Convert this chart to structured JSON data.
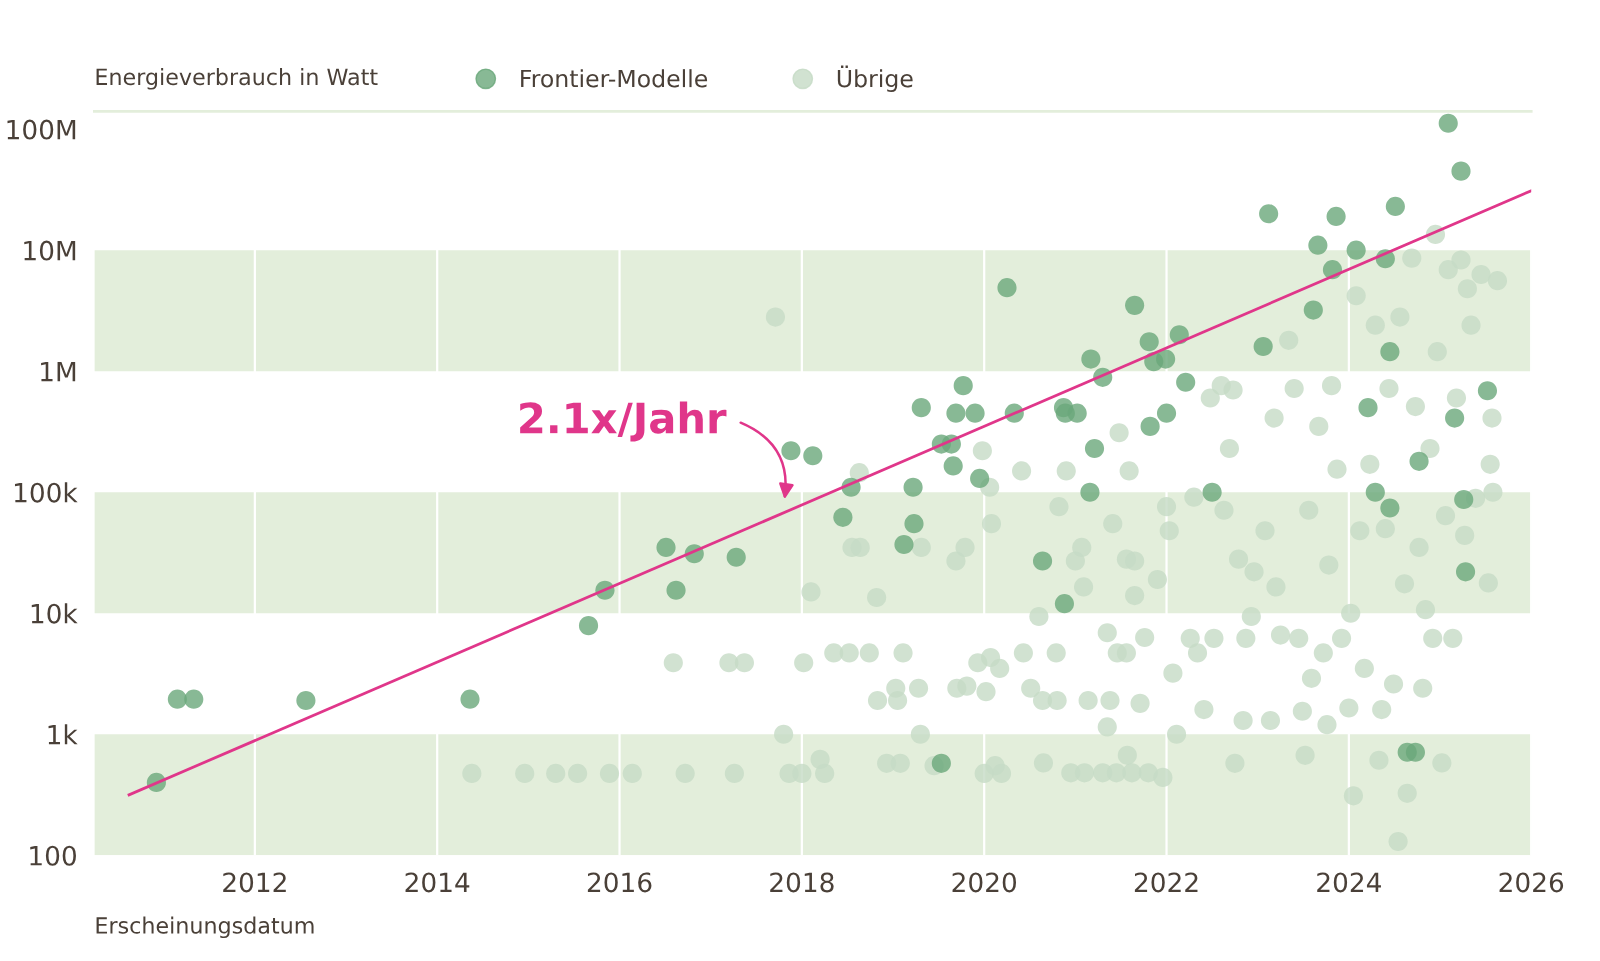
{
  "chart_data": {
    "type": "scatter",
    "xlabel": "Erscheinungsdatum",
    "ylabel": "Energieverbrauch in Watt",
    "log": "y",
    "grid": "x",
    "legend": "top",
    "marker": "circle",
    "xlim": [
      2010.24,
      2026.0
    ],
    "xticks": [
      2012,
      2014,
      2016,
      2018,
      2020,
      2022,
      2024,
      2026
    ],
    "ylim": [
      100,
      140000000
    ],
    "yticks": [
      {
        "value": 100,
        "label": "100"
      },
      {
        "value": 1000,
        "label": "1k"
      },
      {
        "value": 10000,
        "label": "10k"
      },
      {
        "value": 100000,
        "label": "100k"
      },
      {
        "value": 1000000,
        "label": "1M"
      },
      {
        "value": 10000000,
        "label": "10M"
      },
      {
        "value": 100000000,
        "label": "100M"
      }
    ],
    "bands": [
      {
        "axis": "y",
        "from": 100,
        "to": 1000,
        "color": "#e3eedb"
      },
      {
        "axis": "y",
        "from": 10000,
        "to": 100000,
        "color": "#e3eedb"
      },
      {
        "axis": "y",
        "from": 1000000,
        "to": 10000000,
        "color": "#e3eedb"
      }
    ],
    "annotations": [
      "2.1x/Jahr"
    ],
    "series": [
      {
        "name": "Übrige",
        "color": "#c6dbc5",
        "x": [
          2017.71,
          2016.59,
          2017.2,
          2017.37,
          2018.02,
          2017.8,
          2014.38,
          2014.96,
          2015.3,
          2015.54,
          2015.89,
          2016.14,
          2016.72,
          2017.26,
          2017.86,
          2018.0,
          2018.2,
          2018.25,
          2018.35,
          2018.52,
          2018.74,
          2019.11,
          2018.1,
          2018.55,
          2018.64,
          2018.63,
          2018.82,
          2018.83,
          2019.05,
          2019.03,
          2019.28,
          2018.93,
          2019.08,
          2019.3,
          2019.45,
          2019.31,
          2019.69,
          2019.79,
          2019.7,
          2019.81,
          2019.93,
          2020.0,
          2020.19,
          2020.12,
          2019.98,
          2020.06,
          2020.08,
          2020.02,
          2020.07,
          2020.17,
          2020.41,
          2020.43,
          2020.6,
          2020.51,
          2020.64,
          2020.8,
          2020.65,
          2020.79,
          2020.82,
          2020.9,
          2021.0,
          2021.07,
          2021.09,
          2020.95,
          2021.1,
          2021.3,
          2021.45,
          2021.62,
          2021.8,
          2021.14,
          2021.38,
          2021.35,
          2021.46,
          2021.56,
          2021.35,
          2021.41,
          2021.48,
          2021.56,
          2021.65,
          2021.59,
          2021.71,
          2021.57,
          2021.65,
          2021.76,
          2021.9,
          2021.96,
          2022.0,
          2022.03,
          2022.07,
          2022.11,
          2022.26,
          2022.3,
          2022.34,
          2022.41,
          2022.48,
          2022.6,
          2022.52,
          2022.63,
          2022.69,
          2022.73,
          2022.79,
          2022.84,
          2022.87,
          2022.93,
          2022.96,
          2022.75,
          2023.08,
          2023.14,
          2023.18,
          2023.2,
          2023.25,
          2023.34,
          2023.4,
          2023.45,
          2023.49,
          2023.52,
          2023.56,
          2023.59,
          2023.67,
          2023.72,
          2023.76,
          2023.78,
          2023.81,
          2023.87,
          2023.92,
          2024.0,
          2024.02,
          2024.05,
          2024.08,
          2024.12,
          2024.17,
          2024.23,
          2024.29,
          2024.33,
          2024.36,
          2024.4,
          2024.44,
          2024.49,
          2024.54,
          2024.56,
          2024.61,
          2024.64,
          2024.69,
          2024.73,
          2024.77,
          2024.81,
          2024.84,
          2024.89,
          2024.92,
          2024.95,
          2024.97,
          2025.02,
          2025.06,
          2025.09,
          2025.14,
          2025.18,
          2025.23,
          2025.27,
          2025.3,
          2025.34,
          2025.39,
          2025.45,
          2025.53,
          2025.57,
          2025.63,
          2025.55,
          2025.58
        ],
        "values": [
          2800000,
          3900,
          3900,
          3900,
          3900,
          1000,
          475,
          475,
          475,
          475,
          475,
          475,
          475,
          475,
          475,
          475,
          620,
          475,
          4700,
          4700,
          4700,
          4700,
          15000,
          35000,
          35000,
          145000,
          13500,
          1900,
          1900,
          2400,
          2400,
          575,
          575,
          1000,
          550,
          35000,
          27000,
          35000,
          2400,
          2500,
          3900,
          475,
          475,
          550,
          220000,
          110000,
          55000,
          2250,
          4300,
          3500,
          150000,
          4700,
          9400,
          2400,
          1900,
          1900,
          580,
          4700,
          76000,
          150000,
          27000,
          35000,
          16500,
          480,
          480,
          480,
          480,
          480,
          480,
          1900,
          1900,
          1150,
          4700,
          4700,
          6900,
          55000,
          310000,
          28000,
          27000,
          150000,
          1800,
          670,
          14000,
          6300,
          19000,
          440,
          76000,
          48000,
          3200,
          1000,
          6200,
          91000,
          4700,
          1600,
          600000,
          760000,
          6200,
          71000,
          230000,
          700000,
          28000,
          1300,
          6200,
          9400,
          22000,
          575,
          48000,
          1300,
          410000,
          16500,
          6600,
          1800000,
          720000,
          6200,
          1550,
          670,
          71000,
          2900,
          350000,
          4700,
          1200,
          25000,
          760000,
          155000,
          6200,
          1650,
          10000,
          310,
          4200000,
          48000,
          3500,
          170000,
          2400000,
          610,
          1600,
          50000,
          720000,
          2600,
          130,
          2800000,
          17500,
          325,
          8600000,
          510000,
          35000,
          2400,
          10700,
          230000,
          6200,
          13500000,
          1450000,
          580,
          64000,
          6900000,
          6200,
          600000,
          8300000,
          44000,
          4800000,
          2400000,
          89000,
          6300000,
          17800,
          410000,
          5600000,
          170000,
          100000
        ]
      },
      {
        "name": "Frontier-Modelle",
        "color": "#6aa87b",
        "x": [
          2010.92,
          2011.15,
          2011.33,
          2012.56,
          2014.36,
          2015.66,
          2015.84,
          2016.51,
          2016.62,
          2016.82,
          2017.28,
          2017.88,
          2018.12,
          2018.45,
          2018.54,
          2019.12,
          2019.22,
          2019.23,
          2019.31,
          2019.53,
          2019.64,
          2019.66,
          2019.69,
          2019.77,
          2019.9,
          2019.95,
          2019.53,
          2020.25,
          2020.33,
          2020.87,
          2020.89,
          2021.02,
          2020.64,
          2020.88,
          2021.16,
          2021.17,
          2021.21,
          2021.3,
          2021.65,
          2021.81,
          2021.86,
          2021.99,
          2021.82,
          2022.0,
          2022.14,
          2022.21,
          2022.5,
          2023.06,
          2023.12,
          2023.61,
          2023.66,
          2023.82,
          2023.86,
          2024.08,
          2024.4,
          2024.51,
          2024.21,
          2024.29,
          2024.45,
          2024.77,
          2024.73,
          2024.64,
          2025.09,
          2025.23,
          2025.52,
          2025.26,
          2025.28,
          2025.16,
          2024.45
        ],
        "values": [
          400,
          1950,
          1950,
          1900,
          1950,
          7900,
          15500,
          35000,
          15500,
          31000,
          29000,
          220000,
          200000,
          62000,
          110000,
          37000,
          110000,
          55000,
          500000,
          250000,
          250000,
          165000,
          450000,
          760000,
          450000,
          130000,
          575,
          4900000,
          450000,
          500000,
          450000,
          450000,
          27000,
          12000,
          100000,
          1260000,
          230000,
          890000,
          3500000,
          1750000,
          1200000,
          1260000,
          350000,
          450000,
          2000000,
          810000,
          100000,
          1600000,
          20000000,
          3200000,
          11000000,
          6900000,
          19000000,
          10000000,
          8500000,
          23000000,
          500000,
          100000,
          74000,
          180000,
          710,
          710,
          112000000,
          45000000,
          690000,
          87000,
          22000,
          410000,
          1450000
        ]
      },
      {
        "type": "line",
        "marker": "none",
        "color": "#e0368a",
        "x": [
          2010.62,
          2026.0
        ],
        "values": [
          316,
          31000000
        ]
      }
    ]
  }
}
